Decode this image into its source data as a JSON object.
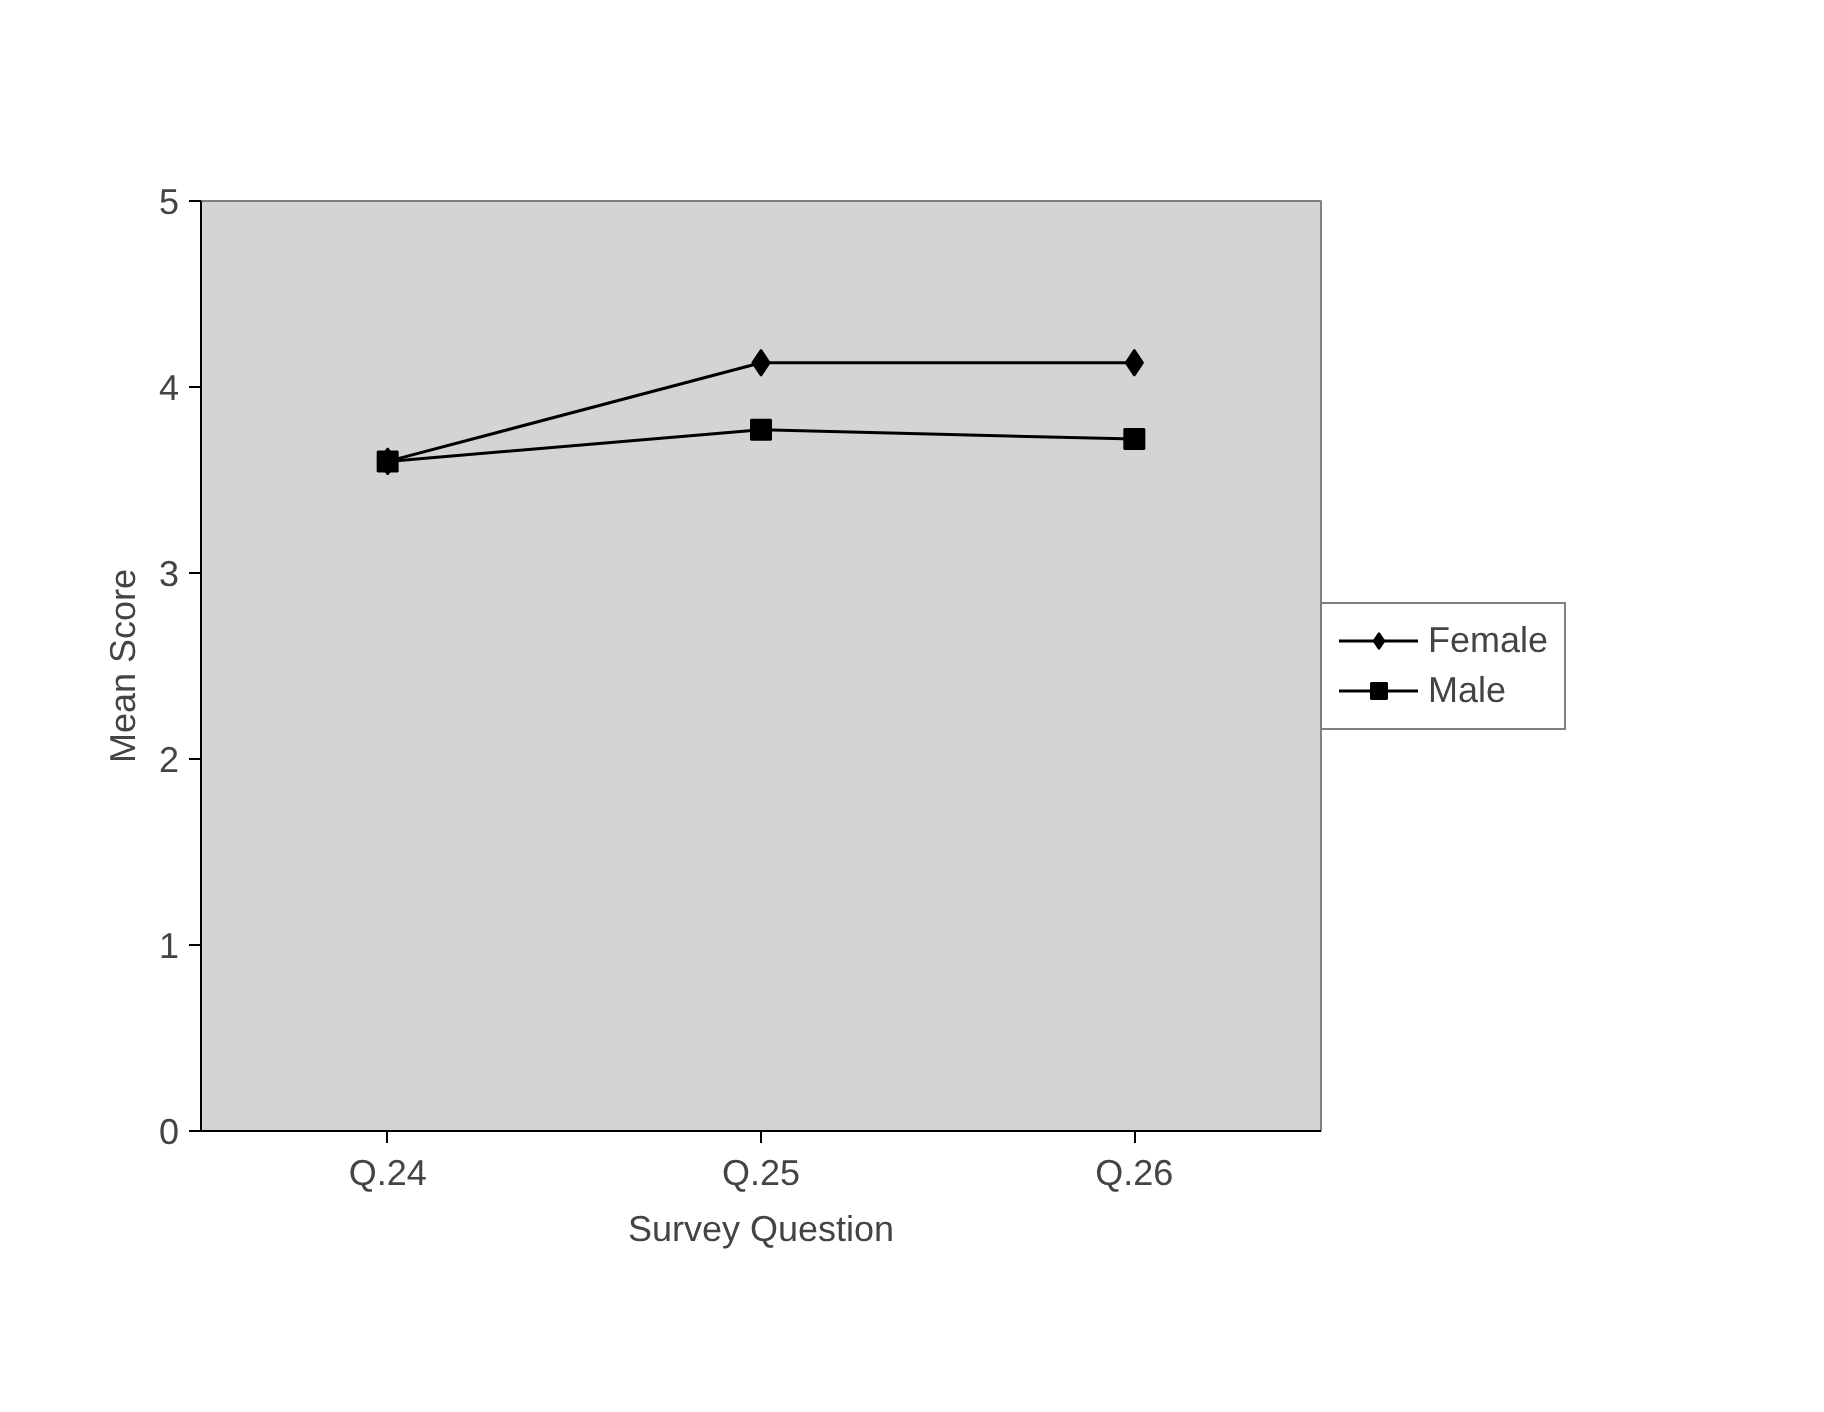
{
  "chart_data": {
    "type": "line",
    "xlabel": "Survey Question",
    "ylabel": "Mean Score",
    "categories": [
      "Q.24",
      "Q.25",
      "Q.26"
    ],
    "series": [
      {
        "name": "Female",
        "color": "#000000",
        "marker": "diamond",
        "values": [
          3.6,
          4.13,
          4.13
        ]
      },
      {
        "name": "Male",
        "color": "#000000",
        "marker": "square",
        "values": [
          3.6,
          3.77,
          3.72
        ]
      }
    ],
    "ylim": [
      0,
      5
    ],
    "yticks": [
      0,
      1,
      2,
      3,
      4,
      5
    ],
    "grid": false,
    "legend": "right",
    "line_style": "solid"
  }
}
